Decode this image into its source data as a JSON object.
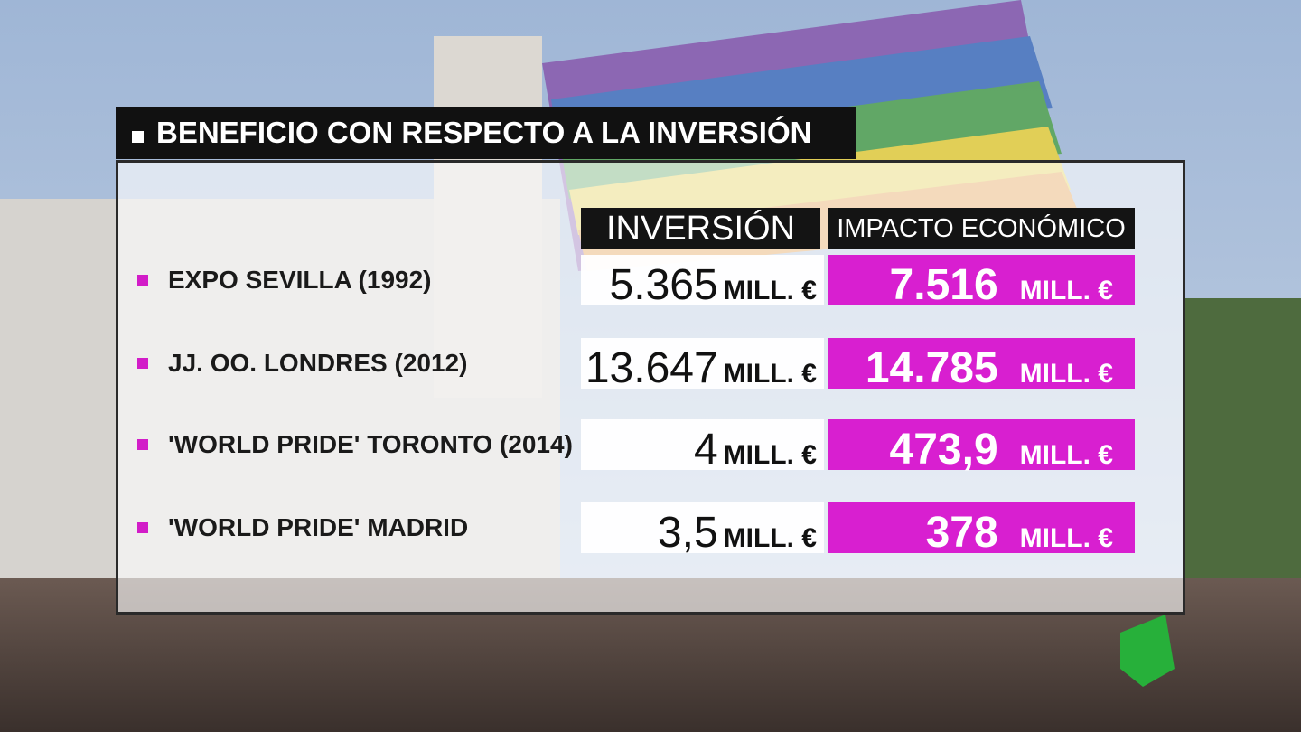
{
  "title": "BENEFICIO CON RESPECTO A LA INVERSIÓN",
  "table": {
    "headers": [
      "INVERSIÓN",
      "IMPACTO ECONÓMICO"
    ],
    "rows": [
      [
        "EXPO SEVILLA (1992)",
        "5.365",
        "MILL. €",
        "7.516",
        "MILL. €"
      ],
      [
        "JJ. OO. LONDRES (2012)",
        "13.647",
        "MILL. €",
        "14.785",
        "MILL. €"
      ],
      [
        "'WORLD PRIDE' TORONTO (2014)",
        "4",
        "MILL. €",
        "473,9",
        "MILL. €"
      ],
      [
        "'WORLD PRIDE' MADRID",
        "3,5",
        "MILL. €",
        "378",
        "MILL. €"
      ]
    ]
  }
}
